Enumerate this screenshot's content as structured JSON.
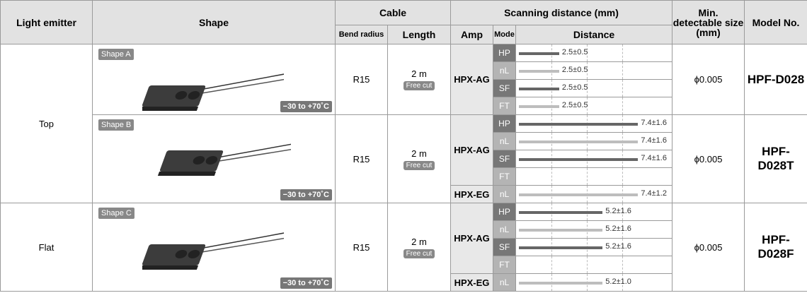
{
  "header": {
    "light_emitter": "Light emitter",
    "shape": "Shape",
    "cable": "Cable",
    "bend_radius": "Bend radius",
    "length": "Length",
    "scanning": "Scanning distance (mm)",
    "amp": "Amp",
    "mode": "Mode",
    "distance": "Distance",
    "min_size": "Min. detectable size (mm)",
    "model": "Model No."
  },
  "distance_scale": {
    "xlim": [
      0,
      8
    ]
  },
  "groups": [
    {
      "light_emitter": "Top",
      "products": [
        {
          "shape_label": "Shape A",
          "temp": "−30 to +70˚C",
          "bend_radius": "R15",
          "length": "2 m",
          "free_cut": "Free cut",
          "min_size": "ϕ0.005",
          "model": "HPF-D028",
          "amps": [
            {
              "amp": "HPX-AG",
              "modes": [
                {
                  "mode": "HP",
                  "value": 2.5,
                  "value_label": "2.5±0.5"
                },
                {
                  "mode": "nL",
                  "value": 2.5,
                  "value_label": "2.5±0.5"
                },
                {
                  "mode": "SF",
                  "value": 2.5,
                  "value_label": "2.5±0.5"
                },
                {
                  "mode": "FT",
                  "value": 2.5,
                  "value_label": "2.5±0.5"
                }
              ]
            }
          ]
        },
        {
          "shape_label": "Shape B",
          "temp": "−30 to +70˚C",
          "bend_radius": "R15",
          "length": "2 m",
          "free_cut": "Free cut",
          "min_size": "ϕ0.005",
          "model": "HPF-D028T",
          "amps": [
            {
              "amp": "HPX-AG",
              "modes": [
                {
                  "mode": "HP",
                  "value": 7.4,
                  "value_label": "7.4±1.6"
                },
                {
                  "mode": "nL",
                  "value": 7.4,
                  "value_label": "7.4±1.6"
                },
                {
                  "mode": "SF",
                  "value": 7.4,
                  "value_label": "7.4±1.6"
                },
                {
                  "mode": "FT"
                }
              ]
            },
            {
              "amp": "HPX-EG",
              "modes": [
                {
                  "mode": "nL",
                  "value": 7.4,
                  "value_label": "7.4±1.2"
                }
              ]
            }
          ]
        }
      ]
    },
    {
      "light_emitter": "Flat",
      "products": [
        {
          "shape_label": "Shape C",
          "temp": "−30 to +70˚C",
          "bend_radius": "R15",
          "length": "2 m",
          "free_cut": "Free cut",
          "min_size": "ϕ0.005",
          "model": "HPF-D028F",
          "amps": [
            {
              "amp": "HPX-AG",
              "modes": [
                {
                  "mode": "HP",
                  "value": 5.2,
                  "value_label": "5.2±1.6"
                },
                {
                  "mode": "nL",
                  "value": 5.2,
                  "value_label": "5.2±1.6"
                },
                {
                  "mode": "SF",
                  "value": 5.2,
                  "value_label": "5.2±1.6"
                },
                {
                  "mode": "FT"
                }
              ]
            },
            {
              "amp": "HPX-EG",
              "modes": [
                {
                  "mode": "nL",
                  "value": 5.2,
                  "value_label": "5.2±1.0"
                }
              ]
            }
          ]
        }
      ]
    }
  ]
}
